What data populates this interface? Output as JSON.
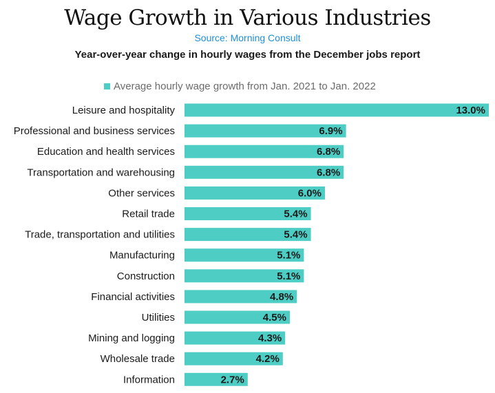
{
  "colors": {
    "bar": "#4ecdc4",
    "source": "#1f8fd6"
  },
  "chart_data": {
    "type": "bar",
    "orientation": "horizontal",
    "title": "Wage Growth in Various Industries",
    "source": "Source: Morning Consult",
    "subtitle": "Year-over-year change in hourly wages from the December jobs report",
    "legend": {
      "position": "top-center"
    },
    "grid": false,
    "xlim": [
      0,
      13
    ],
    "categories": [
      "Leisure and hospitality",
      "Professional and business services",
      "Education and health services",
      "Transportation and warehousing",
      "Other services",
      "Retail trade",
      "Trade, transportation and utilities",
      "Manufacturing",
      "Construction",
      "Financial activities",
      "Utilities",
      "Mining and logging",
      "Wholesale trade",
      "Information"
    ],
    "series": [
      {
        "name": "Average hourly wage growth from Jan. 2021 to Jan. 2022",
        "values": [
          13.0,
          6.9,
          6.8,
          6.8,
          6.0,
          5.4,
          5.4,
          5.1,
          5.1,
          4.8,
          4.5,
          4.3,
          4.2,
          2.7
        ],
        "value_labels": [
          "13.0%",
          "6.9%",
          "6.8%",
          "6.8%",
          "6.0%",
          "5.4%",
          "5.4%",
          "5.1%",
          "5.1%",
          "4.8%",
          "4.5%",
          "4.3%",
          "4.2%",
          "2.7%"
        ]
      }
    ]
  }
}
